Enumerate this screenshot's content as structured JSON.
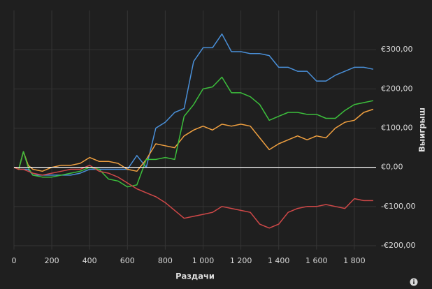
{
  "chart_data": {
    "type": "line",
    "x_label": "Раздачи",
    "y_label": "Выигрыш",
    "x": [
      0,
      25,
      50,
      75,
      100,
      150,
      200,
      250,
      300,
      350,
      400,
      450,
      500,
      550,
      600,
      650,
      700,
      750,
      800,
      850,
      900,
      950,
      1000,
      1050,
      1100,
      1150,
      1200,
      1250,
      1300,
      1350,
      1400,
      1450,
      1500,
      1550,
      1600,
      1650,
      1700,
      1750,
      1800,
      1850,
      1900
    ],
    "series": [
      {
        "color": "#4a90d9",
        "values": [
          0,
          -5,
          -5,
          -5,
          -20,
          -20,
          -20,
          -20,
          -20,
          -15,
          -5,
          -5,
          -5,
          -5,
          -5,
          30,
          0,
          100,
          115,
          140,
          150,
          270,
          305,
          305,
          340,
          295,
          295,
          290,
          290,
          285,
          255,
          255,
          245,
          245,
          220,
          220,
          235,
          245,
          255,
          255,
          250
        ]
      },
      {
        "color": "#f0a040",
        "values": [
          0,
          -5,
          40,
          5,
          -5,
          -10,
          0,
          5,
          5,
          10,
          25,
          15,
          15,
          10,
          -5,
          -10,
          20,
          60,
          55,
          50,
          80,
          95,
          105,
          95,
          110,
          105,
          110,
          105,
          75,
          45,
          60,
          70,
          80,
          70,
          80,
          75,
          100,
          115,
          120,
          140,
          148
        ]
      },
      {
        "color": "#3cbf3c",
        "values": [
          0,
          -5,
          40,
          0,
          -20,
          -25,
          -25,
          -20,
          -15,
          -10,
          0,
          -5,
          -30,
          -35,
          -50,
          -45,
          20,
          20,
          25,
          20,
          130,
          160,
          200,
          205,
          230,
          190,
          190,
          180,
          160,
          120,
          130,
          140,
          140,
          135,
          135,
          125,
          125,
          145,
          160,
          165,
          170
        ]
      },
      {
        "color": "#d04848",
        "values": [
          0,
          -5,
          -5,
          -10,
          -15,
          -20,
          -15,
          -10,
          -5,
          -5,
          5,
          -10,
          -15,
          -25,
          -40,
          -55,
          -65,
          -75,
          -90,
          -110,
          -130,
          -125,
          -120,
          -115,
          -100,
          -105,
          -110,
          -115,
          -145,
          -155,
          -145,
          -115,
          -105,
          -100,
          -100,
          -95,
          -100,
          -105,
          -80,
          -85,
          -85
        ]
      }
    ],
    "xlim": [
      0,
      1915
    ],
    "ylim": [
      -210,
      400
    ],
    "xticks": [
      0,
      200,
      400,
      600,
      800,
      {
        "value": 1000,
        "label": "1 000"
      },
      {
        "value": 1200,
        "label": "1 200"
      },
      {
        "value": 1400,
        "label": "1 400"
      },
      {
        "value": 1600,
        "label": "1 600"
      },
      {
        "value": 1800,
        "label": "1 800"
      }
    ],
    "yticks": [
      {
        "value": -200,
        "label": "-€200,00"
      },
      {
        "value": -100,
        "label": "-€100,00"
      },
      {
        "value": 0,
        "label": "€0,00"
      },
      {
        "value": 100,
        "label": "€100,00"
      },
      {
        "value": 200,
        "label": "€200,00"
      },
      {
        "value": 300,
        "label": "€300,00"
      }
    ],
    "grid": true,
    "zero_line_color": "#ffffff"
  }
}
